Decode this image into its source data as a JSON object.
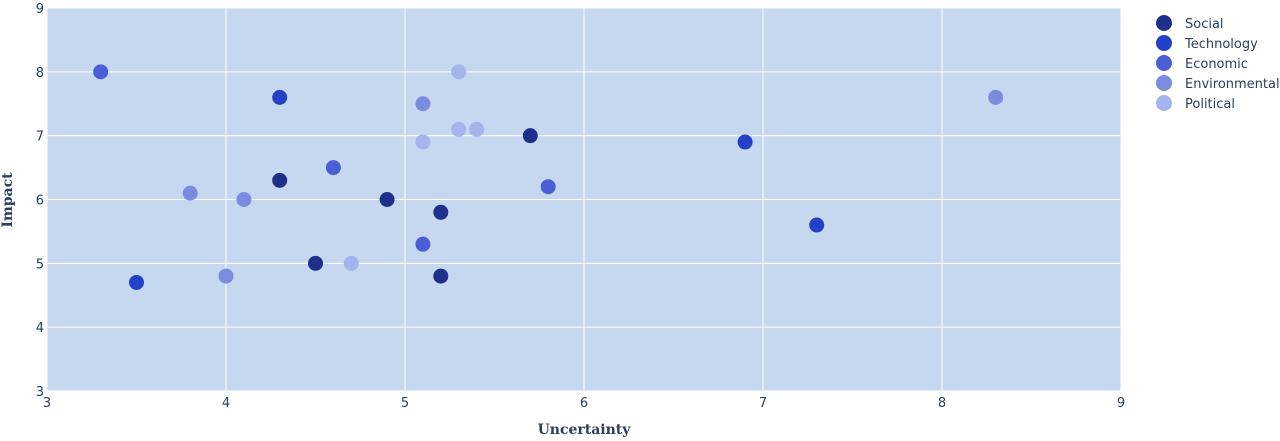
{
  "chart_data": {
    "type": "scatter",
    "xlabel": "Uncertainty",
    "ylabel": "Impact",
    "xlim": [
      3,
      9
    ],
    "ylim": [
      3,
      9
    ],
    "xticks": [
      3,
      4,
      5,
      6,
      7,
      8,
      9
    ],
    "yticks": [
      3,
      4,
      5,
      6,
      7,
      8,
      9
    ],
    "grid": true,
    "legend_position": "top-right",
    "plot_background": "#c6d8f0",
    "series": [
      {
        "name": "Social",
        "color": "#1f2f8c",
        "points": [
          [
            4.3,
            6.3
          ],
          [
            4.5,
            5.0
          ],
          [
            4.9,
            6.0
          ],
          [
            5.2,
            5.8
          ],
          [
            5.2,
            4.8
          ],
          [
            5.7,
            7.0
          ]
        ]
      },
      {
        "name": "Technology",
        "color": "#2340c8",
        "points": [
          [
            3.5,
            4.7
          ],
          [
            4.3,
            7.6
          ],
          [
            6.9,
            6.9
          ],
          [
            7.3,
            5.6
          ]
        ]
      },
      {
        "name": "Economic",
        "color": "#4a5fd6",
        "points": [
          [
            3.3,
            8.0
          ],
          [
            4.6,
            6.5
          ],
          [
            5.1,
            5.3
          ],
          [
            5.8,
            6.2
          ]
        ]
      },
      {
        "name": "Environmental",
        "color": "#7b8ce0",
        "points": [
          [
            3.8,
            6.1
          ],
          [
            4.0,
            4.8
          ],
          [
            4.1,
            6.0
          ],
          [
            5.1,
            7.5
          ],
          [
            8.3,
            7.6
          ]
        ]
      },
      {
        "name": "Political",
        "color": "#a5b4ec",
        "points": [
          [
            4.7,
            5.0
          ],
          [
            5.1,
            6.9
          ],
          [
            5.3,
            8.0
          ],
          [
            5.3,
            7.1
          ],
          [
            5.4,
            7.1
          ]
        ]
      }
    ]
  }
}
